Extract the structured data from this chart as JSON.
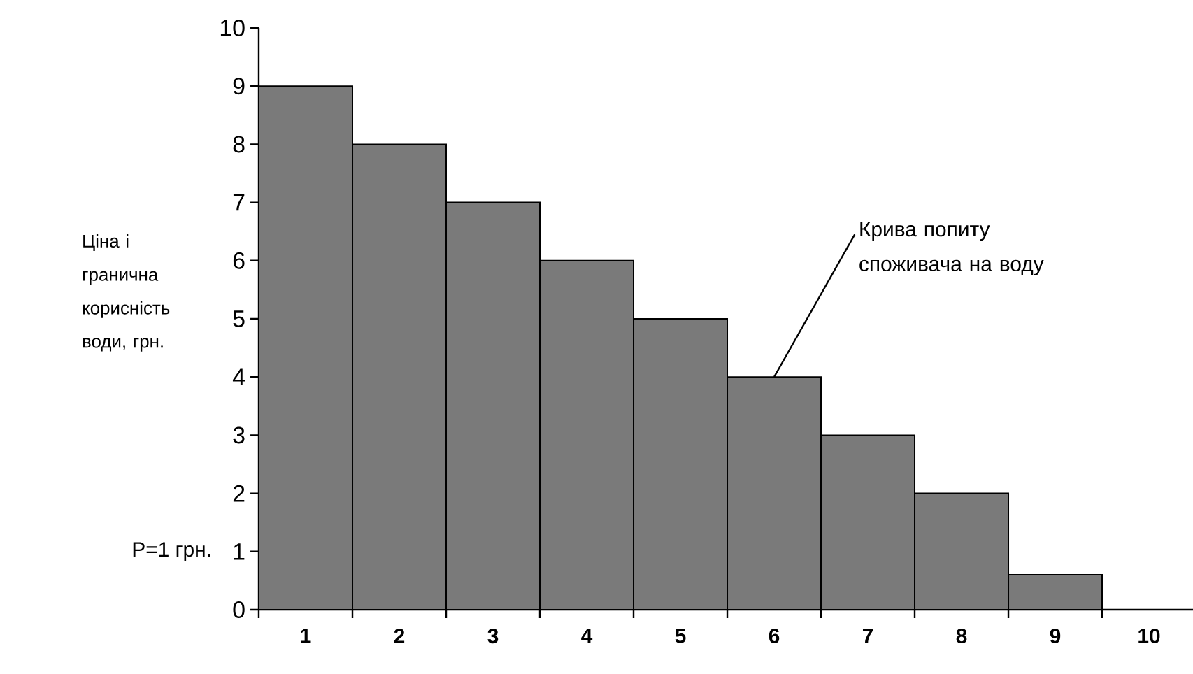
{
  "chart_data": {
    "type": "bar",
    "ylabel": "Ціна і гранична корисність води, грн.",
    "categories": [
      "1",
      "2",
      "3",
      "4",
      "5",
      "6",
      "7",
      "8",
      "9",
      "10"
    ],
    "values": [
      9,
      8,
      7,
      6,
      5,
      4,
      3,
      2,
      0.6,
      null
    ],
    "color": "#7a7a7a",
    "ylim": [
      0,
      10
    ],
    "yticks": [
      0,
      1,
      2,
      3,
      4,
      5,
      6,
      7,
      8,
      9,
      10
    ],
    "annotations": [
      {
        "text": "Крива попиту споживача на воду",
        "x": "6",
        "y": 4
      },
      "P=1 грн."
    ]
  }
}
